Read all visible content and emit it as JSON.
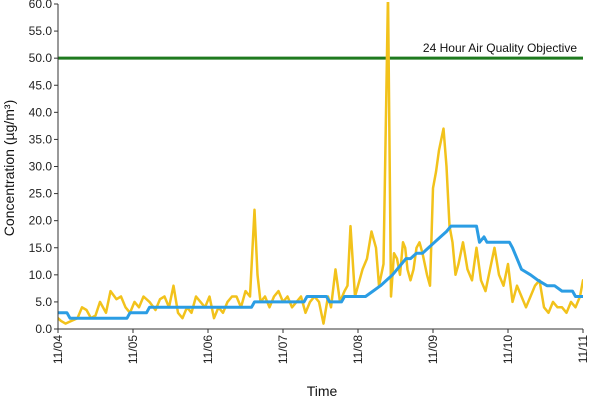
{
  "chart_data": {
    "type": "line",
    "xlabel": "Time",
    "ylabel": "Concentration (µg/m³)",
    "ylim": [
      0,
      60
    ],
    "yticks": [
      "0.0",
      "5.0",
      "10.0",
      "15.0",
      "20.0",
      "25.0",
      "30.0",
      "35.0",
      "40.0",
      "45.0",
      "50.0",
      "55.0",
      "60.0"
    ],
    "xlim": [
      0,
      7
    ],
    "xticks": [
      "11/04",
      "11/05",
      "11/06",
      "11/07",
      "11/08",
      "11/09",
      "11/10",
      "11/11"
    ],
    "grid": false,
    "reference_line": {
      "label": "24 Hour Air Quality Objective",
      "value": 50,
      "color": "#1f7a1f"
    },
    "series": [
      {
        "color": "#f2c21b",
        "x": [
          0.0,
          0.04,
          0.1,
          0.18,
          0.26,
          0.32,
          0.38,
          0.44,
          0.5,
          0.56,
          0.64,
          0.7,
          0.78,
          0.84,
          0.9,
          0.96,
          1.02,
          1.08,
          1.14,
          1.22,
          1.3,
          1.36,
          1.42,
          1.48,
          1.54,
          1.6,
          1.66,
          1.72,
          1.78,
          1.84,
          1.9,
          1.96,
          2.02,
          2.08,
          2.14,
          2.2,
          2.26,
          2.32,
          2.38,
          2.44,
          2.5,
          2.56,
          2.62,
          2.66,
          2.7,
          2.76,
          2.82,
          2.88,
          2.94,
          3.0,
          3.06,
          3.12,
          3.18,
          3.24,
          3.3,
          3.36,
          3.42,
          3.48,
          3.54,
          3.6,
          3.64,
          3.7,
          3.76,
          3.82,
          3.86,
          3.9,
          3.96,
          4.02,
          4.06,
          4.12,
          4.18,
          4.24,
          4.28,
          4.34,
          4.4,
          4.44,
          4.48,
          4.52,
          4.56,
          4.6,
          4.63,
          4.66,
          4.7,
          4.74,
          4.78,
          4.82,
          4.86,
          4.92,
          4.96,
          5.0,
          5.04,
          5.08,
          5.14,
          5.18,
          5.22,
          5.26,
          5.3,
          5.34,
          5.4,
          5.46,
          5.52,
          5.58,
          5.64,
          5.7,
          5.76,
          5.82,
          5.88,
          5.94,
          6.0,
          6.06,
          6.12,
          6.18,
          6.24,
          6.3,
          6.36,
          6.42,
          6.48,
          6.54,
          6.6,
          6.66,
          6.72,
          6.78,
          6.84,
          6.9,
          6.96,
          7.0
        ],
        "y": [
          2,
          1.5,
          1,
          1.5,
          2,
          4,
          3.5,
          2,
          2.5,
          5,
          3,
          7,
          5.5,
          6,
          4,
          3,
          5,
          4,
          6,
          5,
          3.5,
          5.5,
          6,
          4,
          8,
          3,
          2,
          4,
          3,
          6,
          5,
          4,
          6,
          2,
          4,
          3,
          5,
          6,
          6,
          4,
          7,
          6,
          22,
          10,
          5,
          6,
          4,
          6,
          7,
          5,
          6,
          4,
          5,
          6,
          3,
          5,
          6,
          5,
          1,
          6,
          4,
          11,
          5,
          7,
          8,
          19,
          6,
          9,
          11,
          13,
          18,
          15,
          8,
          12,
          62,
          6,
          14,
          13,
          10,
          16,
          15,
          11,
          9,
          11,
          15,
          16,
          14,
          10,
          8,
          26,
          29,
          33,
          37,
          30,
          19,
          16,
          10,
          12,
          16,
          11,
          9,
          15,
          9,
          7,
          11,
          15,
          10,
          8,
          12,
          5,
          8,
          6,
          4,
          6,
          8,
          9,
          4,
          3,
          5,
          4,
          4,
          3,
          5,
          4,
          6,
          9
        ]
      },
      {
        "color": "#2b9de4",
        "x": [
          0.0,
          0.12,
          0.16,
          0.92,
          0.96,
          1.18,
          1.22,
          1.88,
          1.92,
          2.58,
          2.62,
          3.28,
          3.32,
          3.58,
          3.62,
          3.78,
          3.82,
          4.1,
          4.2,
          4.3,
          4.38,
          4.46,
          4.52,
          4.58,
          4.64,
          4.7,
          4.78,
          4.86,
          4.94,
          5.02,
          5.1,
          5.18,
          5.24,
          5.3,
          5.58,
          5.62,
          5.68,
          5.72,
          6.02,
          6.06,
          6.12,
          6.18,
          6.3,
          6.4,
          6.52,
          6.62,
          6.72,
          6.86,
          6.9,
          7.0
        ],
        "y": [
          3,
          3,
          2,
          2,
          3,
          3,
          4,
          4,
          4,
          4,
          5,
          5,
          6,
          6,
          5,
          5,
          6,
          6,
          7,
          8,
          9,
          10,
          11,
          12,
          13,
          13,
          14,
          14,
          15,
          16,
          17,
          18,
          19,
          19,
          19,
          16,
          17,
          16,
          16,
          15,
          13,
          11,
          10,
          9,
          8,
          8,
          7,
          7,
          6,
          6
        ]
      }
    ]
  }
}
